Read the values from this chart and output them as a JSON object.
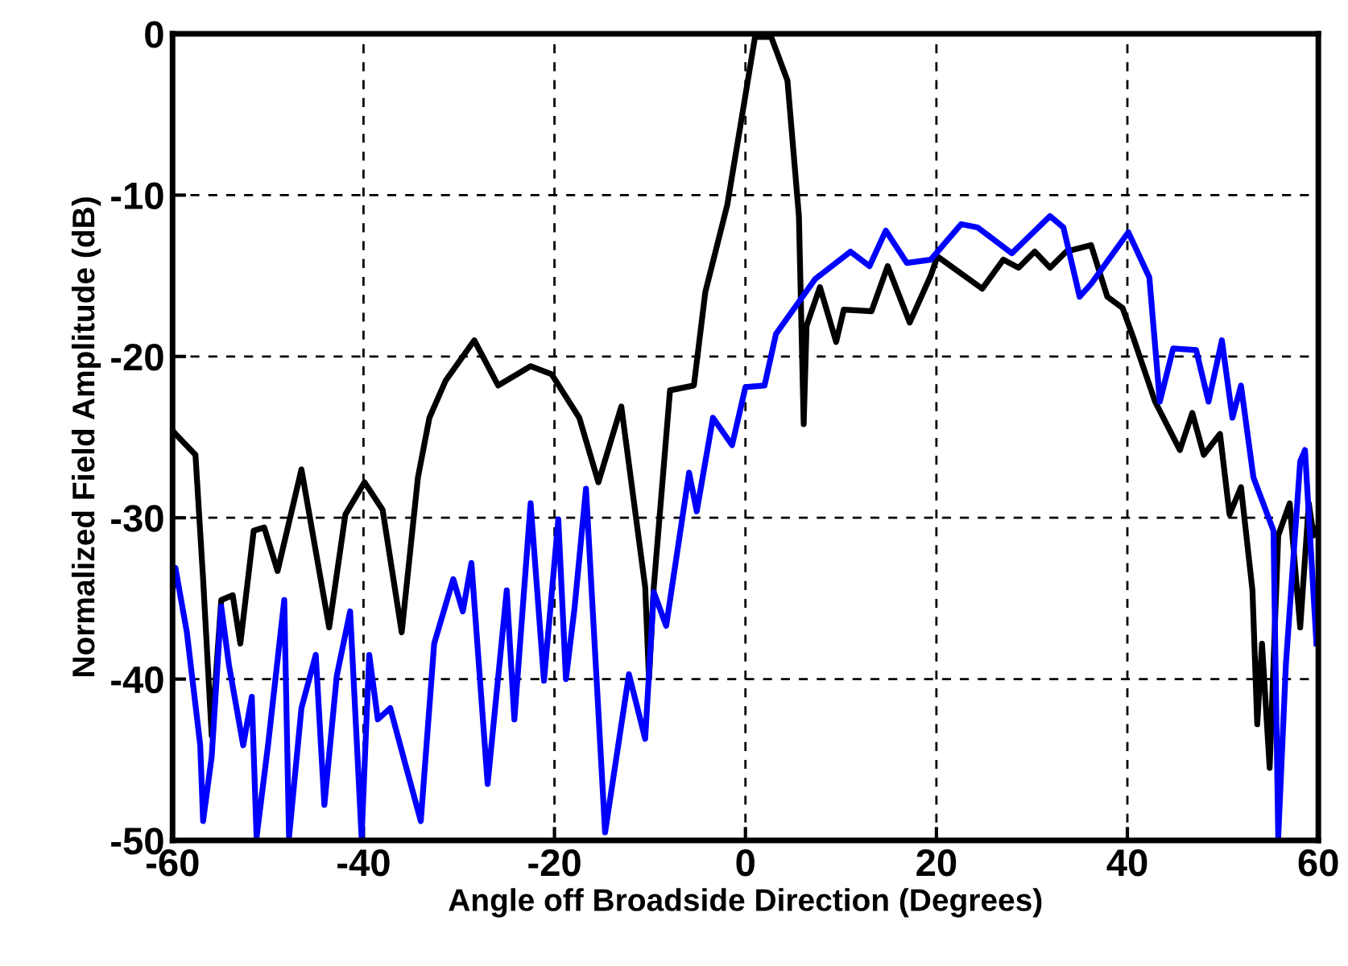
{
  "chart_data": {
    "type": "line",
    "xlabel": "Angle off Broadside Direction (Degrees)",
    "ylabel": "Normalized Field Amplitude (dB)",
    "xlim": [
      -60,
      60
    ],
    "xticks": [
      -60,
      -40,
      -20,
      0,
      20,
      40,
      60
    ],
    "ylim": [
      -50,
      0
    ],
    "yticks": [
      -50,
      -40,
      -30,
      -20,
      -10,
      0
    ],
    "grid": true,
    "line_style": "solid",
    "marker": "none",
    "series": [
      {
        "color": "#000000",
        "x": [
          -60,
          -59.7,
          -57.6,
          -56.8,
          -55.9,
          -54.9,
          -53.7,
          -52.9,
          -51.5,
          -50.4,
          -49.0,
          -46.5,
          -43.6,
          -41.9,
          -39.9,
          -38.0,
          -36.0,
          -34.3,
          -33.1,
          -31.4,
          -28.4,
          -25.9,
          -22.5,
          -20.3,
          -17.4,
          -15.4,
          -13.0,
          -10.5,
          -10.1,
          -9.6,
          -7.9,
          -5.4,
          -4.2,
          -1.9,
          -0.5,
          1.0,
          2.7,
          4.4,
          5.6,
          6.1,
          6.4,
          7.8,
          9.5,
          10.3,
          13.2,
          14.9,
          17.2,
          19.4,
          20.1,
          24.8,
          27.0,
          28.6,
          30.3,
          31.9,
          33.6,
          36.2,
          37.9,
          39.5,
          40.6,
          42.9,
          45.5,
          46.8,
          48.0,
          49.7,
          50.7,
          51.9,
          53.1,
          53.6,
          54.1,
          54.9,
          55.8,
          57.0,
          58.1,
          59.0,
          59.5,
          60
        ],
        "values": [
          -24.6,
          -24.8,
          -26.1,
          -33.8,
          -43.5,
          -35.1,
          -34.8,
          -37.8,
          -30.8,
          -30.6,
          -33.3,
          -27.0,
          -36.8,
          -29.8,
          -27.8,
          -29.5,
          -37.1,
          -27.5,
          -23.8,
          -21.5,
          -19.0,
          -21.8,
          -20.6,
          -21.1,
          -23.8,
          -27.8,
          -23.1,
          -34.3,
          -40.0,
          -34.3,
          -22.1,
          -21.8,
          -16.0,
          -10.6,
          -5.6,
          -0.2,
          -0.2,
          -2.9,
          -11.3,
          -24.2,
          -18.1,
          -15.7,
          -19.1,
          -17.1,
          -17.2,
          -14.4,
          -17.9,
          -15.0,
          -13.8,
          -15.8,
          -14.0,
          -14.5,
          -13.5,
          -14.5,
          -13.5,
          -13.1,
          -16.3,
          -17.0,
          -18.8,
          -22.8,
          -25.8,
          -23.5,
          -26.1,
          -24.8,
          -29.8,
          -28.1,
          -34.5,
          -42.8,
          -37.8,
          -45.5,
          -31.1,
          -29.1,
          -36.8,
          -29.1,
          -31.1,
          -30.5
        ]
      },
      {
        "color": "#0000ff",
        "x": [
          -60,
          -59.7,
          -58.5,
          -57.1,
          -56.8,
          -55.9,
          -54.9,
          -54.1,
          -52.6,
          -51.7,
          -51.2,
          -50.0,
          -48.3,
          -47.8,
          -46.5,
          -45.0,
          -44.1,
          -42.8,
          -41.4,
          -40.2,
          -39.4,
          -38.5,
          -37.2,
          -35.7,
          -34.0,
          -32.6,
          -30.6,
          -29.6,
          -28.7,
          -27.0,
          -25.0,
          -24.2,
          -22.5,
          -21.1,
          -19.6,
          -18.8,
          -17.9,
          -16.7,
          -14.7,
          -12.2,
          -10.5,
          -9.6,
          -8.3,
          -5.9,
          -5.1,
          -3.4,
          -1.4,
          0.0,
          2.0,
          3.2,
          7.3,
          11.0,
          13.0,
          14.7,
          16.9,
          19.4,
          22.6,
          24.3,
          27.9,
          31.9,
          33.3,
          35.0,
          36.2,
          40.1,
          42.3,
          43.4,
          44.8,
          47.2,
          48.5,
          49.9,
          51.0,
          51.9,
          53.2,
          55.3,
          55.8,
          56.6,
          58.1,
          58.6,
          59.8
        ],
        "values": [
          -34.5,
          -33.1,
          -37.1,
          -44.1,
          -48.8,
          -44.8,
          -35.5,
          -39.1,
          -44.1,
          -41.1,
          -49.8,
          -44.1,
          -35.1,
          -49.8,
          -41.8,
          -38.5,
          -47.8,
          -39.8,
          -35.8,
          -49.8,
          -38.5,
          -42.5,
          -41.8,
          -45.1,
          -48.8,
          -37.8,
          -33.8,
          -35.8,
          -32.8,
          -46.5,
          -34.5,
          -42.5,
          -29.1,
          -40.1,
          -30.1,
          -40.0,
          -35.6,
          -28.2,
          -49.5,
          -39.7,
          -43.7,
          -34.6,
          -36.7,
          -27.2,
          -29.6,
          -23.8,
          -25.5,
          -21.9,
          -21.8,
          -18.6,
          -15.2,
          -13.5,
          -14.4,
          -12.2,
          -14.2,
          -14.0,
          -11.8,
          -12.0,
          -13.6,
          -11.3,
          -12.0,
          -16.3,
          -15.5,
          -12.3,
          -15.1,
          -22.8,
          -19.5,
          -19.6,
          -22.8,
          -19.0,
          -23.8,
          -21.8,
          -27.5,
          -30.8,
          -49.8,
          -39.1,
          -26.5,
          -25.8,
          -37.8
        ]
      }
    ]
  }
}
